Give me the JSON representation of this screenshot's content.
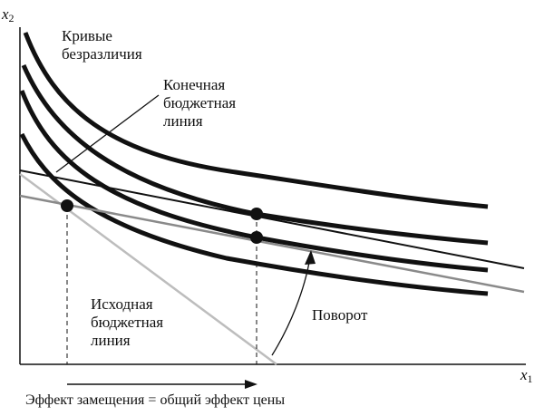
{
  "axes": {
    "x_label": "x",
    "x_sub": "1",
    "y_label": "x",
    "y_sub": "2"
  },
  "labels": {
    "indifference_1": "Кривые",
    "indifference_2": "безразличия",
    "final_budget_1": "Конечная",
    "final_budget_2": "бюджетная",
    "final_budget_3": "линия",
    "initial_budget_1": "Исходная",
    "initial_budget_2": "бюджетная",
    "initial_budget_3": "линия",
    "rotation": "Поворот",
    "effect": "Эффект замещения = общий эффект цены"
  },
  "colors": {
    "curve": "#111111",
    "initial_budget": "#bdbdbd",
    "rotated_budget": "#8a8a8a",
    "final_budget": "#111111"
  }
}
